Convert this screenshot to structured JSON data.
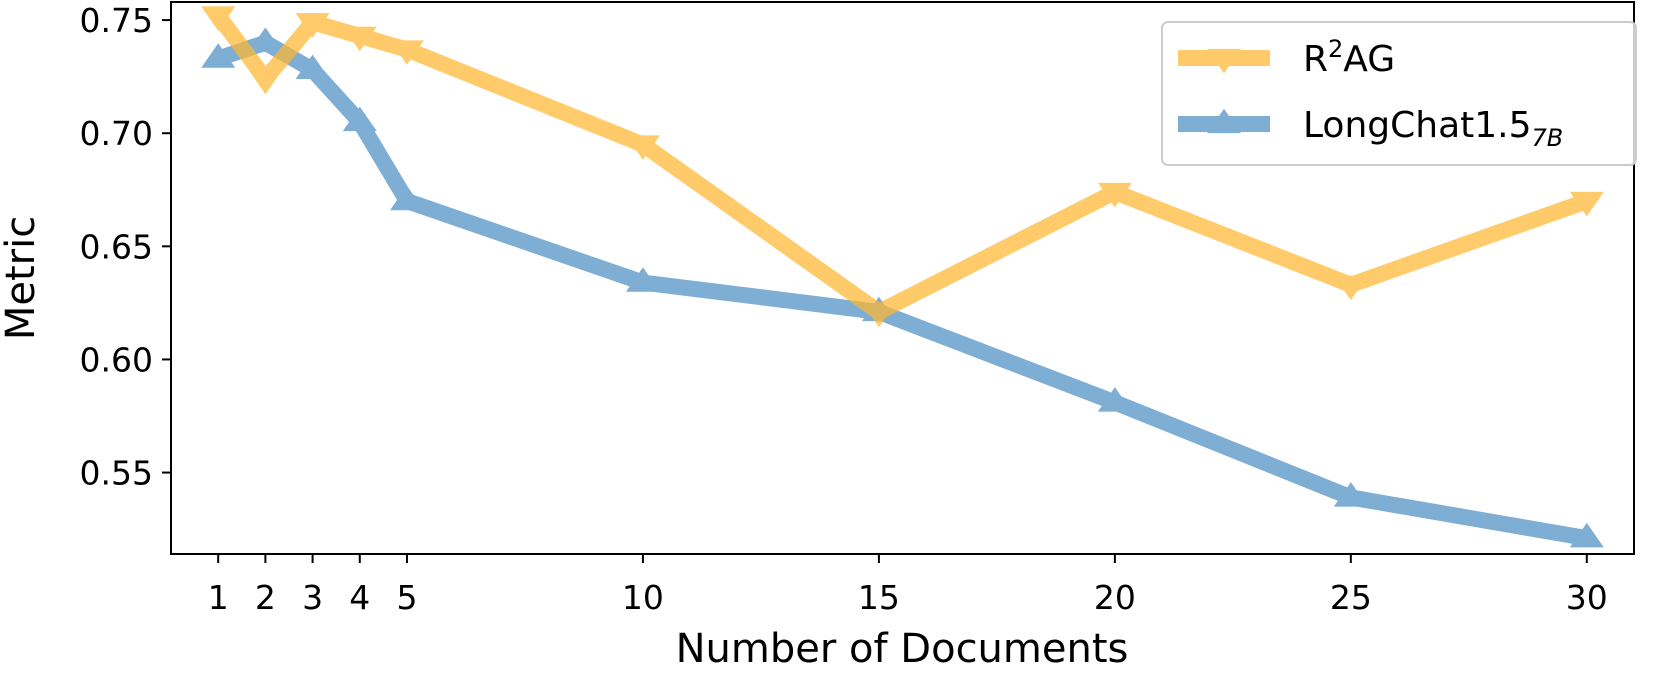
{
  "chart_data": {
    "type": "line",
    "xlabel": "Number of Documents",
    "ylabel": "Metric",
    "x": [
      1,
      2,
      3,
      4,
      5,
      10,
      15,
      20,
      25,
      30
    ],
    "xticks": [
      "1",
      "2",
      "3",
      "4",
      "5",
      "10",
      "15",
      "20",
      "25",
      "30"
    ],
    "xlim": [
      0,
      31
    ],
    "yticks": [
      "0.55",
      "0.60",
      "0.65",
      "0.70",
      "0.75"
    ],
    "ytick_values": [
      0.55,
      0.6,
      0.65,
      0.7,
      0.75
    ],
    "ylim": [
      0.514,
      0.758
    ],
    "grid": false,
    "legend_position": "top-right",
    "series": [
      {
        "name": "R²AG",
        "legend_main": "R",
        "legend_sup": "2",
        "legend_rest": "AG",
        "color": "#ffb732",
        "marker": "triangle-down",
        "values": [
          0.752,
          0.724,
          0.749,
          0.743,
          0.737,
          0.695,
          0.621,
          0.674,
          0.633,
          0.67
        ]
      },
      {
        "name": "LongChat1.5 7B",
        "legend_main": "LongChat1.5",
        "legend_sub": "7B",
        "color": "#4e8fc4",
        "marker": "triangle-up",
        "values": [
          0.733,
          0.74,
          0.728,
          0.705,
          0.67,
          0.634,
          0.621,
          0.581,
          0.539,
          0.521
        ]
      }
    ]
  }
}
